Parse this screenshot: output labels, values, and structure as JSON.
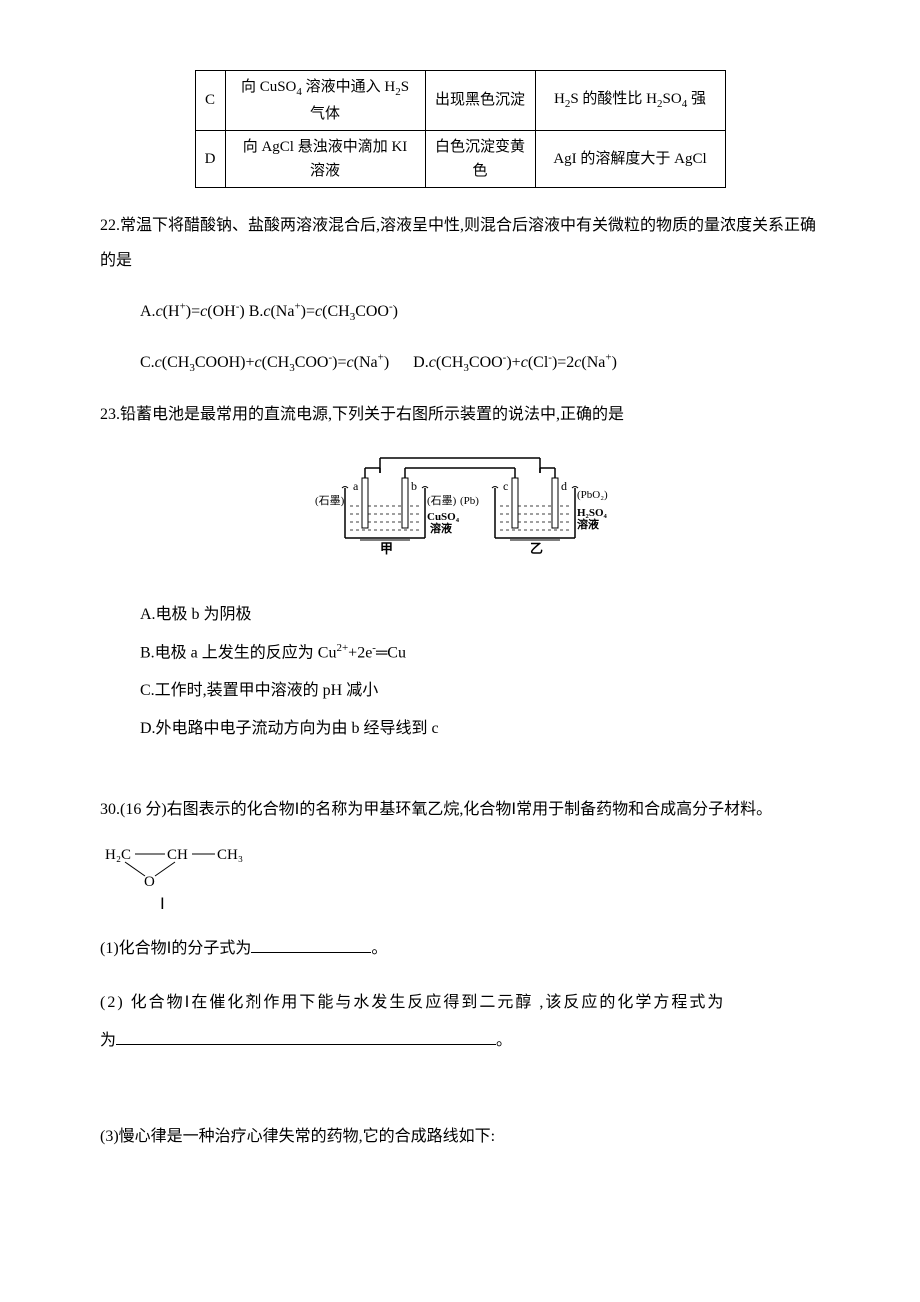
{
  "table": {
    "rows": [
      {
        "label": "C",
        "operation": "向 CuSO<sub>4</sub> 溶液中通入 H<sub>2</sub>S 气体",
        "observation": "出现黑色沉淀",
        "conclusion": "H<sub>2</sub>S 的酸性比 H<sub>2</sub>SO<sub>4</sub> 强"
      },
      {
        "label": "D",
        "operation": "向 AgCl 悬浊液中滴加 KI 溶液",
        "observation": "白色沉淀变黄色",
        "conclusion": "AgI 的溶解度大于 AgCl"
      }
    ],
    "col_widths": [
      "30px",
      "200px",
      "110px",
      "190px"
    ]
  },
  "q22": {
    "stem": "22.常温下将醋酸钠、盐酸两溶液混合后,溶液呈中性,则混合后溶液中有关微粒的物质的量浓度关系正确的是",
    "option_ab": "A.<i>c</i>(H<sup>+</sup>)=<i>c</i>(OH<sup>-</sup>) B.<i>c</i>(Na<sup>+</sup>)=<i>c</i>(CH<sub>3</sub>COO<sup>-</sup>)",
    "option_cd": "C.<i>c</i>(CH<sub>3</sub>COOH)+<i>c</i>(CH<sub>3</sub>COO<sup>-</sup>)=<i>c</i>(Na<sup>+</sup>)&nbsp;&nbsp;&nbsp;&nbsp;&nbsp;&nbsp;D.<i>c</i>(CH<sub>3</sub>COO<sup>-</sup>)+<i>c</i>(Cl<sup>-</sup>)=2<i>c</i>(Na<sup>+</sup>)"
  },
  "q23": {
    "stem": "23.铅蓄电池是最常用的直流电源,下列关于右图所示装置的说法中,正确的是",
    "diagram": {
      "labels": {
        "a": "a",
        "graphite_a": "(石墨)",
        "b": "b",
        "graphite_b": "(石墨)",
        "pb": "(Pb)",
        "c": "c",
        "d": "d",
        "pbo2": "(PbO<sub>2</sub>)",
        "cuso4": "CuSO<sub>4</sub>溶液",
        "h2so4": "H<sub>2</sub>SO<sub>4</sub>溶液",
        "jia": "甲",
        "yi": "乙"
      }
    },
    "option_a": "A.电极 b 为阴极",
    "option_b": "B.电极 a 上发生的反应为 Cu<sup>2+</sup>+2e<sup>-</sup>═Cu",
    "option_c": "C.工作时,装置甲中溶液的 pH 减小",
    "option_d": "D.外电路中电子流动方向为由 b 经导线到 c"
  },
  "q30": {
    "stem": "30.(16 分)右图表示的化合物Ⅰ的名称为甲基环氧乙烷,化合物Ⅰ常用于制备药物和合成高分子材料。",
    "structure": {
      "top": "H<sub>2</sub>C───CH──CH<sub>3</sub>",
      "mid_left": "\\",
      "mid_right": "/",
      "o": "O",
      "label": "Ⅰ"
    },
    "sub1_prefix": "(1)化合物Ⅰ的分子式为",
    "sub1_suffix": "。",
    "sub2_prefix": "(2) 化合物Ⅰ在催化剂作用下能与水发生反应得到二元醇 ,该反应的化学方程式为",
    "sub2_suffix": "。",
    "sub3": "(3)慢心律是一种治疗心律失常的药物,它的合成路线如下:"
  },
  "style": {
    "background_color": "#ffffff",
    "text_color": "#000000",
    "border_color": "#000000",
    "body_fontsize": 16,
    "table_fontsize": 15,
    "line_height": 1.6
  }
}
